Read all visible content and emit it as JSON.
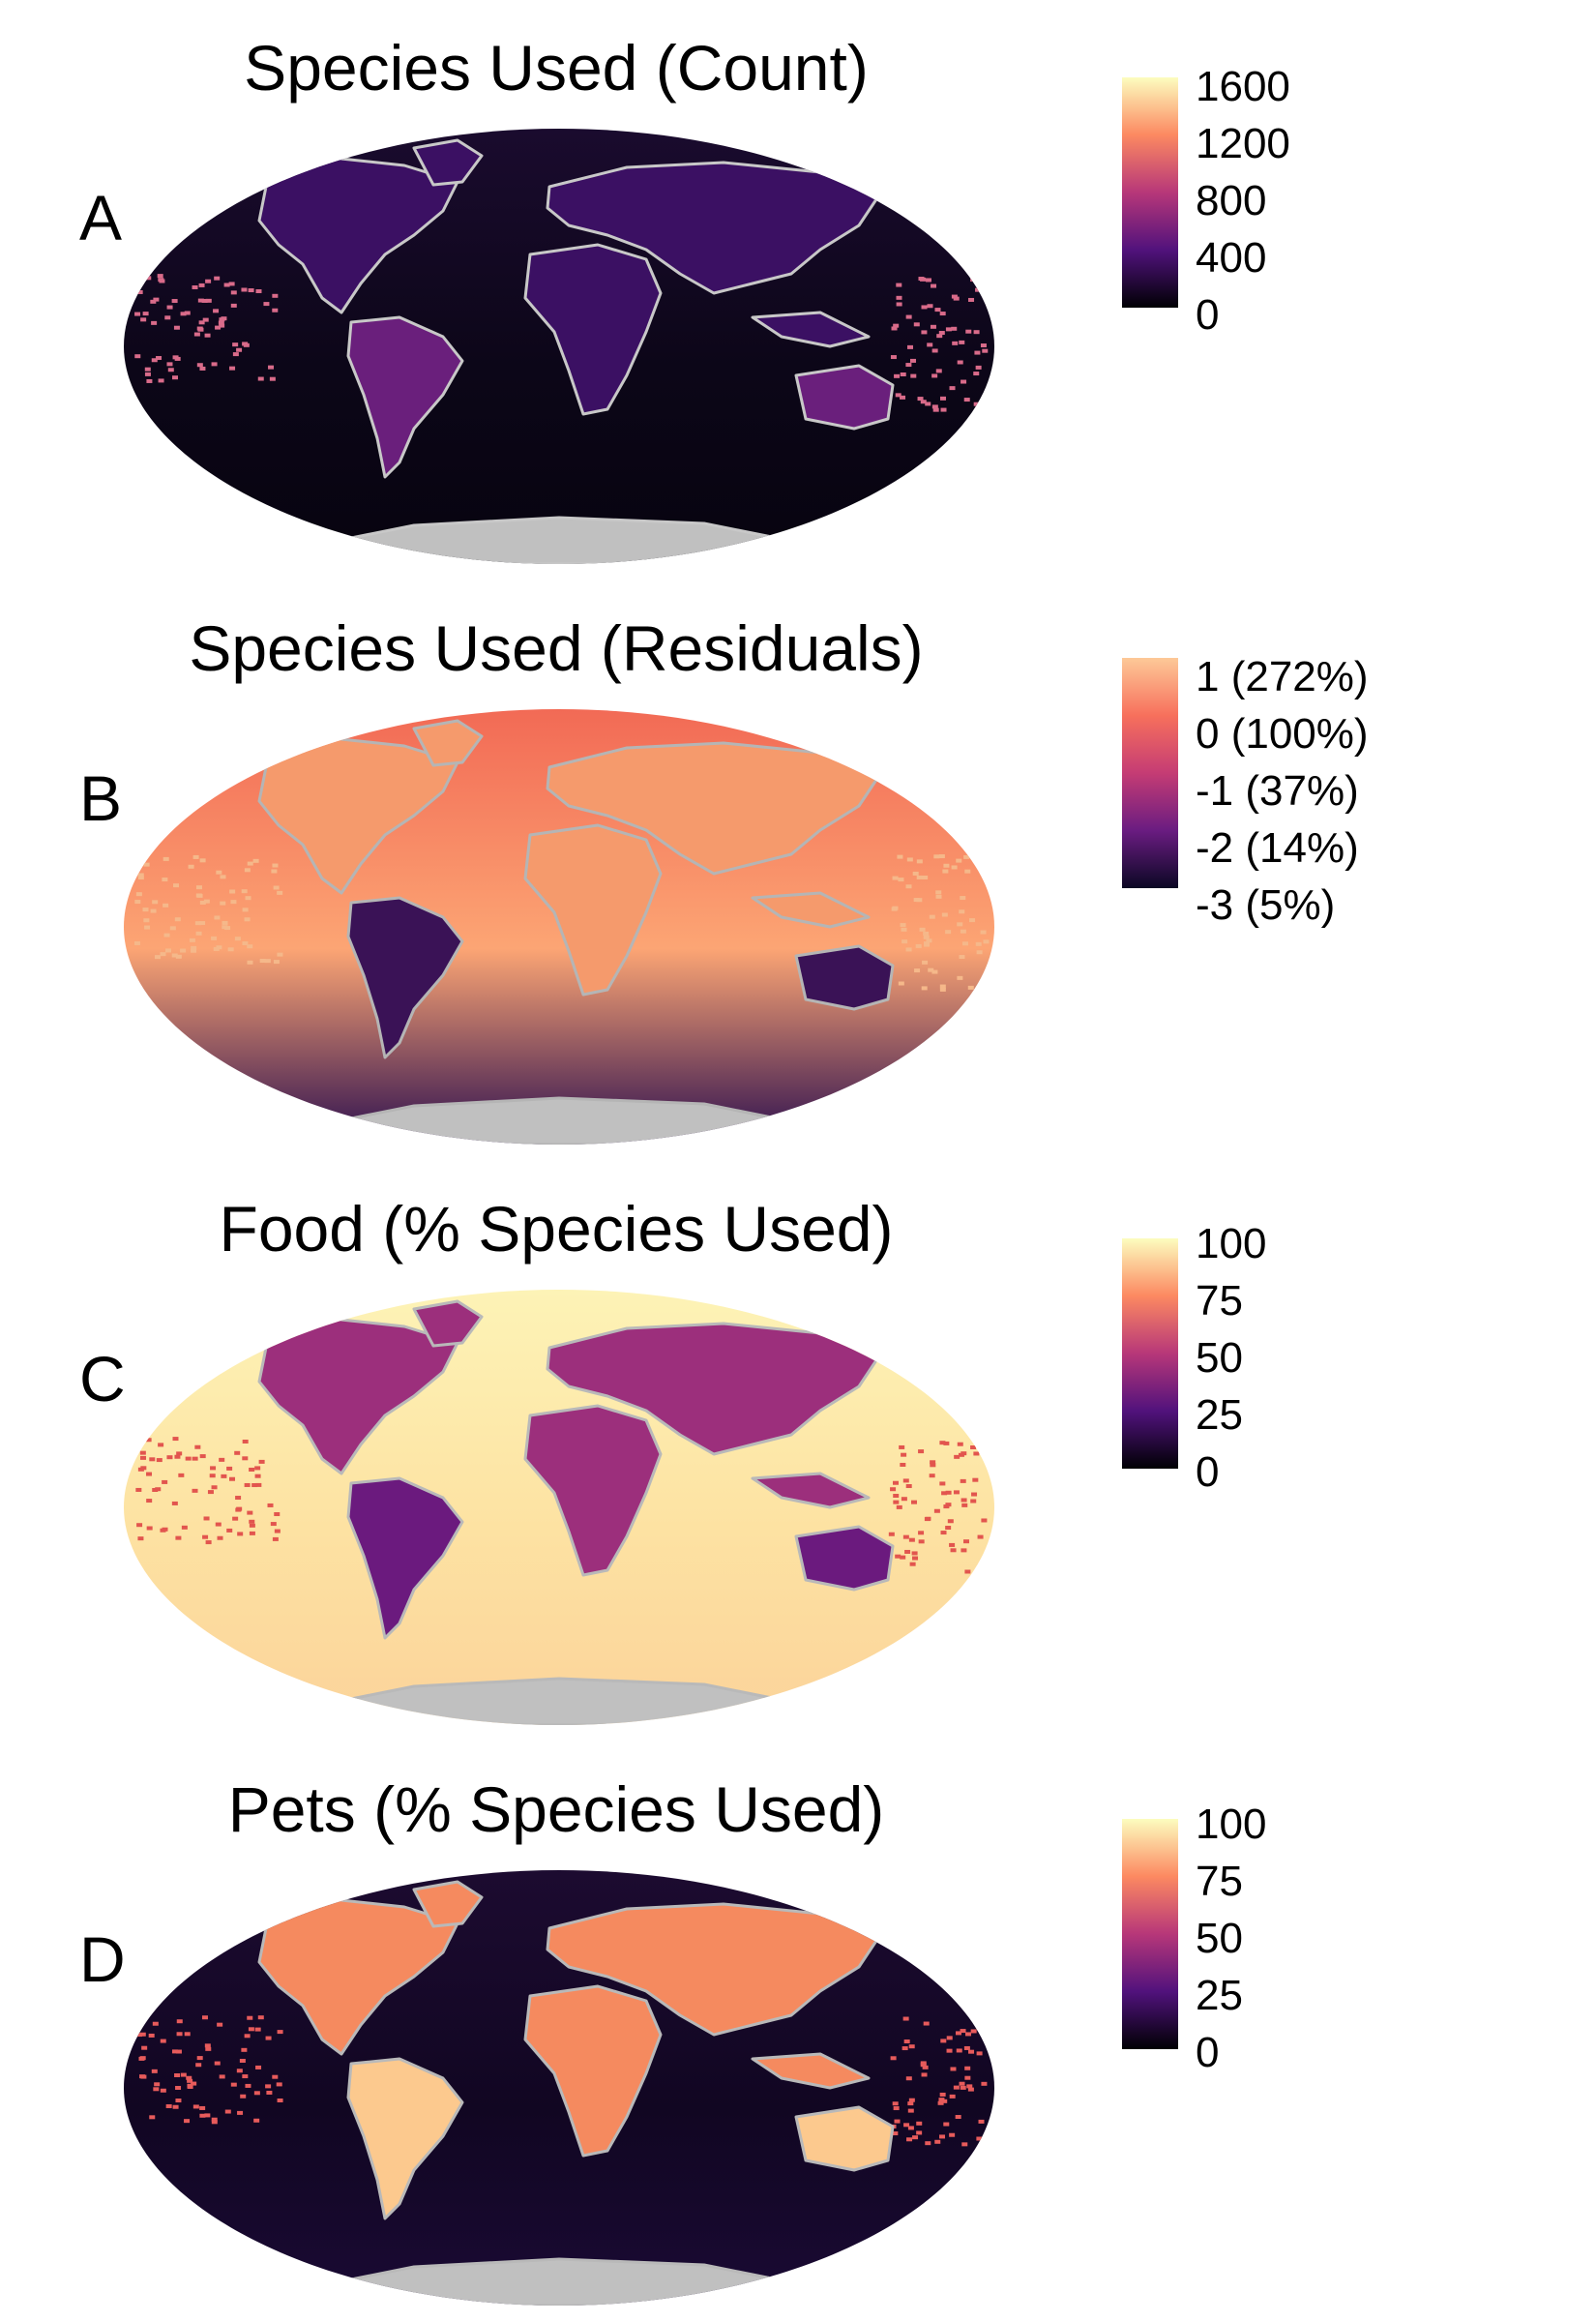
{
  "panels": [
    {
      "letter": "A",
      "title": "Species Used (Count)",
      "map_style": "dark",
      "legend_labels": [
        "1600",
        "1200",
        "800",
        "400",
        "0"
      ]
    },
    {
      "letter": "B",
      "title": "Species Used (Residuals)",
      "map_style": "residuals",
      "legend_labels": [
        "1 (272%)",
        "0 (100%)",
        "-1 (37%)",
        "-2 (14%)",
        "-3 (5%)"
      ]
    },
    {
      "letter": "C",
      "title": "Food (% Species Used)",
      "map_style": "food",
      "legend_labels": [
        "100",
        "75",
        "50",
        "25",
        "0"
      ]
    },
    {
      "letter": "D",
      "title": "Pets (% Species Used)",
      "map_style": "pets",
      "legend_labels": [
        "100",
        "75",
        "50",
        "25",
        "0"
      ]
    }
  ],
  "colors": {
    "magma_top": "#fcfdbf",
    "magma_upper": "#fc8961",
    "magma_mid": "#b73779",
    "magma_lower": "#51127c",
    "magma_bottom": "#000004",
    "residual_top": "#fdc998",
    "land_outline": "#b9b9b9",
    "antarctica": "#c0c0c0"
  }
}
